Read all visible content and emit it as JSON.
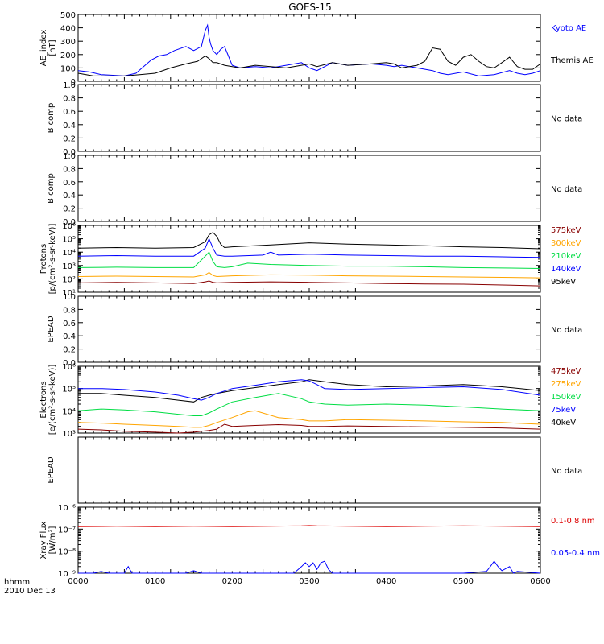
{
  "figure": {
    "title": "GOES-15",
    "time_label": "hhmm",
    "date_label": "2010 Dec 13",
    "x_ticks": [
      "0000",
      "0100",
      "0200",
      "0300",
      "0400",
      "0500",
      "0600"
    ],
    "colors": {
      "black": "#000000",
      "blue": "#0000ff",
      "green": "#00dd44",
      "orange": "#ffa500",
      "red": "#cc0000",
      "dark_red": "#880000"
    }
  },
  "chart_data": [
    {
      "id": "ae",
      "type": "line",
      "ylabel": [
        "AE_index",
        "[nT]"
      ],
      "ylim": [
        0,
        500
      ],
      "ytick_values": [
        0,
        100,
        200,
        300,
        400,
        500
      ],
      "ytick_labels": [
        "0",
        "100",
        "200",
        "300",
        "400",
        "500"
      ],
      "legend": [
        {
          "label": "Kyoto AE",
          "color": "#0000ff"
        },
        {
          "label": "Themis AE",
          "color": "#000000"
        }
      ],
      "series": [
        {
          "name": "Kyoto AE",
          "color": "#0000ff",
          "x": [
            0,
            15,
            30,
            45,
            60,
            75,
            85,
            95,
            105,
            115,
            125,
            140,
            150,
            160,
            165,
            168,
            170,
            172,
            175,
            180,
            185,
            190,
            195,
            200,
            210,
            230,
            250,
            270,
            290,
            300,
            310,
            330,
            350,
            380,
            400,
            410,
            420,
            440,
            460,
            470,
            480,
            500,
            520,
            540,
            560,
            570,
            580,
            590,
            600
          ],
          "y": [
            80,
            70,
            50,
            45,
            40,
            60,
            110,
            160,
            190,
            200,
            230,
            260,
            230,
            260,
            380,
            420,
            330,
            280,
            230,
            200,
            240,
            260,
            190,
            120,
            100,
            110,
            100,
            120,
            140,
            100,
            80,
            140,
            120,
            130,
            120,
            110,
            120,
            100,
            80,
            60,
            50,
            70,
            40,
            50,
            80,
            60,
            50,
            60,
            80
          ]
        },
        {
          "name": "Themis AE",
          "color": "#000000",
          "x": [
            0,
            20,
            40,
            60,
            80,
            100,
            120,
            140,
            155,
            165,
            170,
            175,
            180,
            190,
            200,
            210,
            230,
            250,
            270,
            290,
            300,
            310,
            330,
            350,
            380,
            400,
            410,
            420,
            440,
            450,
            460,
            470,
            480,
            490,
            500,
            510,
            520,
            530,
            540,
            550,
            560,
            570,
            580,
            590,
            600
          ],
          "y": [
            60,
            40,
            40,
            40,
            50,
            60,
            100,
            130,
            150,
            190,
            170,
            140,
            140,
            120,
            110,
            100,
            120,
            110,
            100,
            120,
            130,
            110,
            140,
            120,
            130,
            140,
            130,
            100,
            120,
            150,
            250,
            240,
            150,
            120,
            180,
            200,
            150,
            110,
            100,
            140,
            180,
            110,
            90,
            90,
            130
          ]
        }
      ]
    },
    {
      "id": "bcomp1",
      "type": "line",
      "ylabel": [
        "B comp"
      ],
      "ylim": [
        0,
        1
      ],
      "ytick_values": [
        0,
        0.2,
        0.4,
        0.6,
        0.8,
        1.0
      ],
      "ytick_labels": [
        "0.0",
        "0.2",
        "0.4",
        "0.6",
        "0.8",
        "1.0"
      ],
      "right_text": "No data",
      "series": []
    },
    {
      "id": "bcomp2",
      "type": "line",
      "ylabel": [
        "B comp"
      ],
      "ylim": [
        0,
        1
      ],
      "ytick_values": [
        0,
        0.2,
        0.4,
        0.6,
        0.8,
        1.0
      ],
      "ytick_labels": [
        "0.0",
        "0.2",
        "0.4",
        "0.6",
        "0.8",
        "1.0"
      ],
      "right_text": "No data",
      "series": []
    },
    {
      "id": "protons",
      "type": "line",
      "log": true,
      "ylabel": [
        "Protons",
        "[p/(cm²-s-sr-keV)]"
      ],
      "ylim": [
        10,
        1000000
      ],
      "ytick_values": [
        10,
        100,
        1000,
        10000,
        100000,
        1000000
      ],
      "ytick_labels": [
        "10¹",
        "10²",
        "10³",
        "10⁴",
        "10⁵",
        "10⁶"
      ],
      "legend": [
        {
          "label": "575keV",
          "color": "#880000"
        },
        {
          "label": "300keV",
          "color": "#ffa500"
        },
        {
          "label": "210keV",
          "color": "#00dd44"
        },
        {
          "label": "140keV",
          "color": "#0000ff"
        },
        {
          "label": "95keV",
          "color": "#000000"
        }
      ],
      "series": [
        {
          "name": "95keV",
          "color": "#000000",
          "x": [
            0,
            50,
            100,
            150,
            165,
            170,
            175,
            180,
            185,
            190,
            200,
            250,
            300,
            350,
            400,
            450,
            500,
            550,
            600
          ],
          "y": [
            20000,
            22000,
            20000,
            22000,
            60000,
            200000,
            300000,
            150000,
            40000,
            22000,
            25000,
            35000,
            50000,
            40000,
            35000,
            30000,
            25000,
            22000,
            18000
          ]
        },
        {
          "name": "140keV",
          "color": "#0000ff",
          "x": [
            0,
            50,
            100,
            150,
            165,
            170,
            175,
            180,
            190,
            200,
            240,
            250,
            260,
            300,
            350,
            400,
            450,
            500,
            550,
            600
          ],
          "y": [
            5000,
            5500,
            5000,
            5000,
            20000,
            100000,
            20000,
            6000,
            5000,
            5000,
            6000,
            10000,
            6000,
            7000,
            6000,
            5500,
            5000,
            5000,
            4500,
            4000
          ]
        },
        {
          "name": "210keV",
          "color": "#00dd44",
          "x": [
            0,
            50,
            100,
            150,
            165,
            170,
            175,
            180,
            190,
            200,
            220,
            250,
            300,
            350,
            400,
            450,
            500,
            550,
            600
          ],
          "y": [
            700,
            750,
            700,
            700,
            5000,
            10000,
            2000,
            800,
            700,
            800,
            1500,
            1200,
            1000,
            900,
            900,
            800,
            700,
            650,
            600
          ]
        },
        {
          "name": "300keV",
          "color": "#ffa500",
          "x": [
            0,
            50,
            100,
            150,
            165,
            170,
            175,
            180,
            200,
            250,
            300,
            350,
            400,
            450,
            500,
            550,
            600
          ],
          "y": [
            150,
            160,
            150,
            140,
            200,
            300,
            180,
            150,
            170,
            200,
            190,
            170,
            160,
            150,
            140,
            130,
            120
          ]
        },
        {
          "name": "575keV",
          "color": "#880000",
          "x": [
            0,
            50,
            100,
            150,
            165,
            170,
            175,
            180,
            200,
            250,
            300,
            350,
            400,
            450,
            500,
            550,
            600
          ],
          "y": [
            50,
            55,
            50,
            45,
            60,
            70,
            55,
            50,
            55,
            60,
            55,
            50,
            45,
            42,
            40,
            35,
            30
          ]
        }
      ]
    },
    {
      "id": "epead1",
      "type": "line",
      "ylabel": [
        "EPEAD"
      ],
      "ylim": [
        0,
        1
      ],
      "ytick_values": [
        0,
        0.2,
        0.4,
        0.6,
        0.8,
        1.0
      ],
      "ytick_labels": [
        "0.0",
        "0.2",
        "0.4",
        "0.6",
        "0.8",
        "1.0"
      ],
      "right_text": "No data",
      "series": []
    },
    {
      "id": "electrons",
      "type": "line",
      "log": true,
      "ylabel": [
        "Electrons",
        "[e/(cm²-s-sr-keV)]"
      ],
      "ylim": [
        1000,
        1000000
      ],
      "ytick_values": [
        1000,
        10000,
        100000,
        1000000
      ],
      "ytick_labels": [
        "10³",
        "10⁴",
        "10⁵",
        "10⁶"
      ],
      "legend": [
        {
          "label": "475keV",
          "color": "#880000"
        },
        {
          "label": "275keV",
          "color": "#ffa500"
        },
        {
          "label": "150keV",
          "color": "#00dd44"
        },
        {
          "label": "75keV",
          "color": "#0000ff"
        },
        {
          "label": "40keV",
          "color": "#000000"
        }
      ],
      "series": [
        {
          "name": "40keV",
          "color": "#000000",
          "x": [
            0,
            30,
            60,
            100,
            130,
            150,
            160,
            170,
            180,
            200,
            230,
            260,
            290,
            300,
            320,
            350,
            400,
            450,
            500,
            550,
            600
          ],
          "y": [
            60000,
            60000,
            50000,
            40000,
            30000,
            25000,
            40000,
            50000,
            60000,
            80000,
            110000,
            150000,
            200000,
            250000,
            200000,
            150000,
            120000,
            130000,
            150000,
            120000,
            80000
          ]
        },
        {
          "name": "75keV",
          "color": "#0000ff",
          "x": [
            0,
            30,
            60,
            100,
            130,
            150,
            160,
            170,
            180,
            200,
            230,
            260,
            290,
            300,
            310,
            320,
            350,
            400,
            450,
            500,
            550,
            600
          ],
          "y": [
            100000,
            100000,
            90000,
            70000,
            50000,
            35000,
            30000,
            40000,
            60000,
            100000,
            140000,
            200000,
            250000,
            220000,
            150000,
            100000,
            90000,
            100000,
            110000,
            120000,
            90000,
            50000
          ]
        },
        {
          "name": "150keV",
          "color": "#00dd44",
          "x": [
            0,
            30,
            60,
            100,
            130,
            150,
            160,
            170,
            180,
            200,
            230,
            260,
            290,
            300,
            320,
            350,
            400,
            450,
            500,
            550,
            600
          ],
          "y": [
            10000,
            12000,
            11000,
            9000,
            7000,
            6000,
            6000,
            8000,
            12000,
            25000,
            40000,
            60000,
            35000,
            25000,
            20000,
            18000,
            20000,
            18000,
            15000,
            12000,
            10000
          ]
        },
        {
          "name": "275keV",
          "color": "#ffa500",
          "x": [
            0,
            30,
            60,
            100,
            130,
            150,
            160,
            170,
            180,
            200,
            220,
            230,
            260,
            290,
            300,
            320,
            350,
            400,
            450,
            500,
            550,
            600
          ],
          "y": [
            3000,
            2800,
            2500,
            2200,
            2000,
            1800,
            1800,
            2200,
            3000,
            5000,
            9000,
            10000,
            5000,
            4000,
            3500,
            3500,
            4000,
            3800,
            3500,
            3200,
            3000,
            2500
          ]
        },
        {
          "name": "475keV",
          "color": "#880000",
          "x": [
            0,
            30,
            60,
            100,
            130,
            150,
            160,
            170,
            180,
            190,
            200,
            230,
            260,
            290,
            300,
            320,
            350,
            400,
            450,
            500,
            550,
            600
          ],
          "y": [
            1500,
            1400,
            1200,
            1100,
            1000,
            1100,
            1200,
            1300,
            1500,
            2500,
            2000,
            2200,
            2400,
            2200,
            2000,
            2000,
            2100,
            2000,
            1900,
            1800,
            1700,
            1500
          ]
        }
      ]
    },
    {
      "id": "epead2",
      "type": "line",
      "ylabel": [
        "EPEAD"
      ],
      "ylim": [
        0,
        1
      ],
      "ytick_values": [],
      "ytick_labels": [],
      "right_text": "No data",
      "series": []
    },
    {
      "id": "xray",
      "type": "line",
      "log": true,
      "ylabel": [
        "Xray Flux",
        "[W/m²]"
      ],
      "ylim": [
        1e-09,
        1e-06
      ],
      "ytick_values": [
        1e-09,
        1e-08,
        1e-07,
        1e-06
      ],
      "ytick_labels": [
        "10⁻⁹",
        "10⁻⁸",
        "10⁻⁷",
        "10⁻⁶"
      ],
      "legend": [
        {
          "label": "0.1-0.8 nm",
          "color": "#dd0000"
        },
        {
          "label": "0.05-0.4 nm",
          "color": "#0000ff"
        }
      ],
      "series": [
        {
          "name": "0.1-0.8 nm",
          "color": "#dd0000",
          "x": [
            0,
            50,
            100,
            150,
            200,
            250,
            290,
            300,
            310,
            350,
            400,
            450,
            500,
            550,
            600
          ],
          "y": [
            1.3e-07,
            1.35e-07,
            1.3e-07,
            1.35e-07,
            1.3e-07,
            1.35e-07,
            1.4e-07,
            1.45e-07,
            1.4e-07,
            1.35e-07,
            1.3e-07,
            1.35e-07,
            1.4e-07,
            1.35e-07,
            1.3e-07
          ]
        },
        {
          "name": "0.05-0.4 nm",
          "color": "#0000ff",
          "x": [
            0,
            20,
            30,
            40,
            50,
            60,
            65,
            70,
            80,
            100,
            140,
            150,
            160,
            200,
            280,
            290,
            295,
            300,
            305,
            310,
            315,
            320,
            325,
            330,
            350,
            400,
            450,
            500,
            530,
            535,
            540,
            545,
            550,
            560,
            565,
            570,
            600
          ],
          "y": [
            1e-09,
            1e-09,
            1.2e-09,
            1e-09,
            1e-09,
            1e-09,
            2e-09,
            1e-09,
            1e-09,
            1e-09,
            1e-09,
            1.3e-09,
            1e-09,
            1e-09,
            1e-09,
            2e-09,
            3e-09,
            2e-09,
            3e-09,
            1.5e-09,
            3e-09,
            3.5e-09,
            1.5e-09,
            1e-09,
            1e-09,
            1e-09,
            1e-09,
            1e-09,
            1.2e-09,
            2e-09,
            3.5e-09,
            2e-09,
            1.3e-09,
            2e-09,
            1e-09,
            1.2e-09,
            1e-09
          ]
        }
      ]
    }
  ]
}
